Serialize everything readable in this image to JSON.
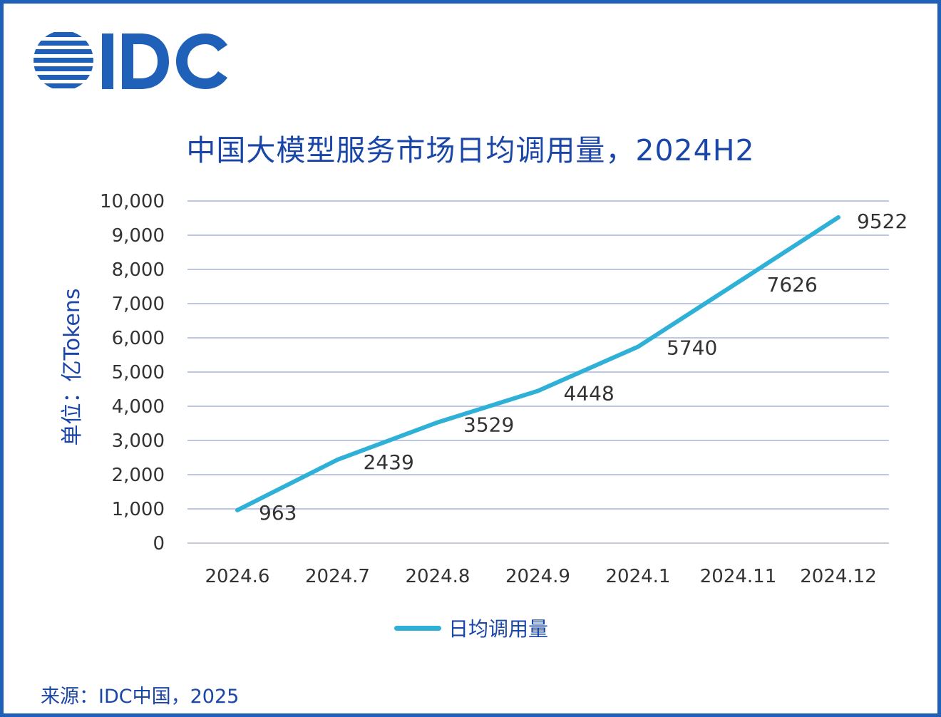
{
  "brand": {
    "name": "IDC",
    "color": "#1f61b8"
  },
  "chart_data": {
    "type": "line",
    "title": "中国大模型服务市场日均调用量，2024H2",
    "ylabel": "单位：亿Tokens",
    "xlabel": "",
    "categories": [
      "2024.6",
      "2024.7",
      "2024.8",
      "2024.9",
      "2024.1",
      "2024.11",
      "2024.12"
    ],
    "series": [
      {
        "name": "日均调用量",
        "values": [
          963,
          2439,
          3529,
          4448,
          5740,
          7626,
          9522
        ],
        "color": "#2fb0d6"
      }
    ],
    "ylim": [
      0,
      10000
    ],
    "yticks": [
      "0",
      "1,000",
      "2,000",
      "3,000",
      "4,000",
      "5,000",
      "6,000",
      "7,000",
      "8,000",
      "9,000",
      "10,000"
    ],
    "grid": true,
    "legend_position": "bottom-center",
    "data_labels": true
  },
  "source": "来源：IDC中国，2025"
}
